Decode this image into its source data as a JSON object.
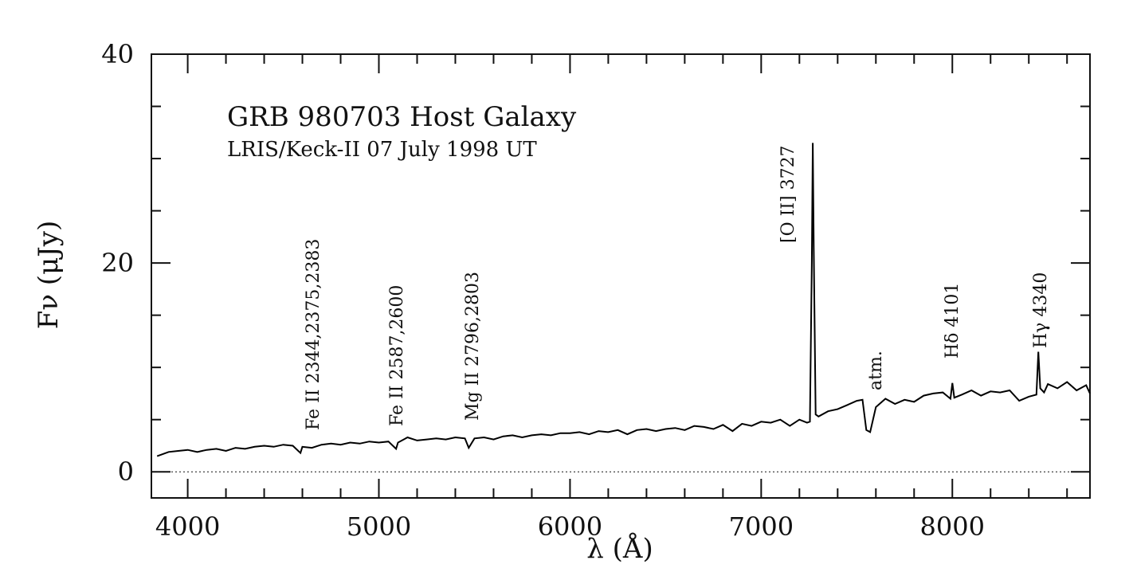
{
  "chart_data": {
    "type": "line",
    "title": "GRB 980703 Host Galaxy",
    "subtitle": "LRIS/Keck-II 07 July 1998 UT",
    "xlabel": "λ (Å)",
    "ylabel": "Fν (μJy)",
    "annotations": [
      "Fe II 2344,2375,2383",
      "Fe II 2587,2600",
      "Mg II 2796,2803",
      "[O II] 3727",
      "atm.",
      "Hδ 4101",
      "Hγ 4340"
    ],
    "x": [
      3840,
      3900,
      3950,
      4000,
      4050,
      4100,
      4150,
      4200,
      4250,
      4300,
      4350,
      4400,
      4450,
      4500,
      4550,
      4590,
      4600,
      4650,
      4700,
      4750,
      4800,
      4850,
      4900,
      4950,
      5000,
      5050,
      5090,
      5100,
      5150,
      5200,
      5250,
      5300,
      5350,
      5400,
      5450,
      5470,
      5500,
      5550,
      5600,
      5650,
      5700,
      5750,
      5800,
      5850,
      5900,
      5950,
      6000,
      6050,
      6100,
      6150,
      6200,
      6250,
      6300,
      6350,
      6400,
      6450,
      6500,
      6550,
      6600,
      6650,
      6700,
      6750,
      6800,
      6850,
      6900,
      6950,
      7000,
      7050,
      7100,
      7150,
      7200,
      7240,
      7255,
      7265,
      7270,
      7275,
      7285,
      7300,
      7350,
      7400,
      7450,
      7500,
      7530,
      7550,
      7570,
      7600,
      7650,
      7700,
      7750,
      7800,
      7850,
      7900,
      7950,
      7990,
      8000,
      8010,
      8050,
      8100,
      8150,
      8200,
      8250,
      8300,
      8350,
      8400,
      8440,
      8450,
      8460,
      8480,
      8500,
      8550,
      8600,
      8650,
      8700,
      8720
    ],
    "values": [
      1.5,
      1.9,
      2.0,
      2.1,
      1.9,
      2.1,
      2.2,
      2.0,
      2.3,
      2.2,
      2.4,
      2.5,
      2.4,
      2.6,
      2.5,
      1.8,
      2.4,
      2.3,
      2.6,
      2.7,
      2.6,
      2.8,
      2.7,
      2.9,
      2.8,
      2.9,
      2.2,
      2.8,
      3.3,
      3.0,
      3.1,
      3.2,
      3.1,
      3.3,
      3.2,
      2.3,
      3.2,
      3.3,
      3.1,
      3.4,
      3.5,
      3.3,
      3.5,
      3.6,
      3.5,
      3.7,
      3.7,
      3.8,
      3.6,
      3.9,
      3.8,
      4.0,
      3.6,
      4.0,
      4.1,
      3.9,
      4.1,
      4.2,
      4.0,
      4.4,
      4.3,
      4.1,
      4.5,
      3.9,
      4.6,
      4.4,
      4.8,
      4.7,
      5.0,
      4.4,
      5.0,
      4.7,
      4.8,
      20,
      31.5,
      21.5,
      5.5,
      5.3,
      5.8,
      6.0,
      6.4,
      6.8,
      6.9,
      4.0,
      3.8,
      6.2,
      7.0,
      6.5,
      6.9,
      6.7,
      7.3,
      7.5,
      7.6,
      7.0,
      8.5,
      7.1,
      7.4,
      7.8,
      7.3,
      7.7,
      7.6,
      7.8,
      6.8,
      7.2,
      7.4,
      11.5,
      8.0,
      7.6,
      8.4,
      8.0,
      8.6,
      7.8,
      8.3,
      7.5
    ],
    "color": "#000000",
    "xlim": [
      3810,
      8720
    ],
    "ylim": [
      -2.5,
      40
    ],
    "xticks": [
      4000,
      5000,
      6000,
      7000,
      8000
    ],
    "xticks_minor": [
      4200,
      4400,
      4600,
      4800,
      5200,
      5400,
      5600,
      5800,
      6200,
      6400,
      6600,
      6800,
      7200,
      7400,
      7600,
      7800,
      8200,
      8400,
      8600
    ],
    "yticks": [
      0,
      20,
      40
    ],
    "yticks_minor": [
      5,
      10,
      15,
      25,
      30,
      35
    ],
    "zero_line": true
  }
}
